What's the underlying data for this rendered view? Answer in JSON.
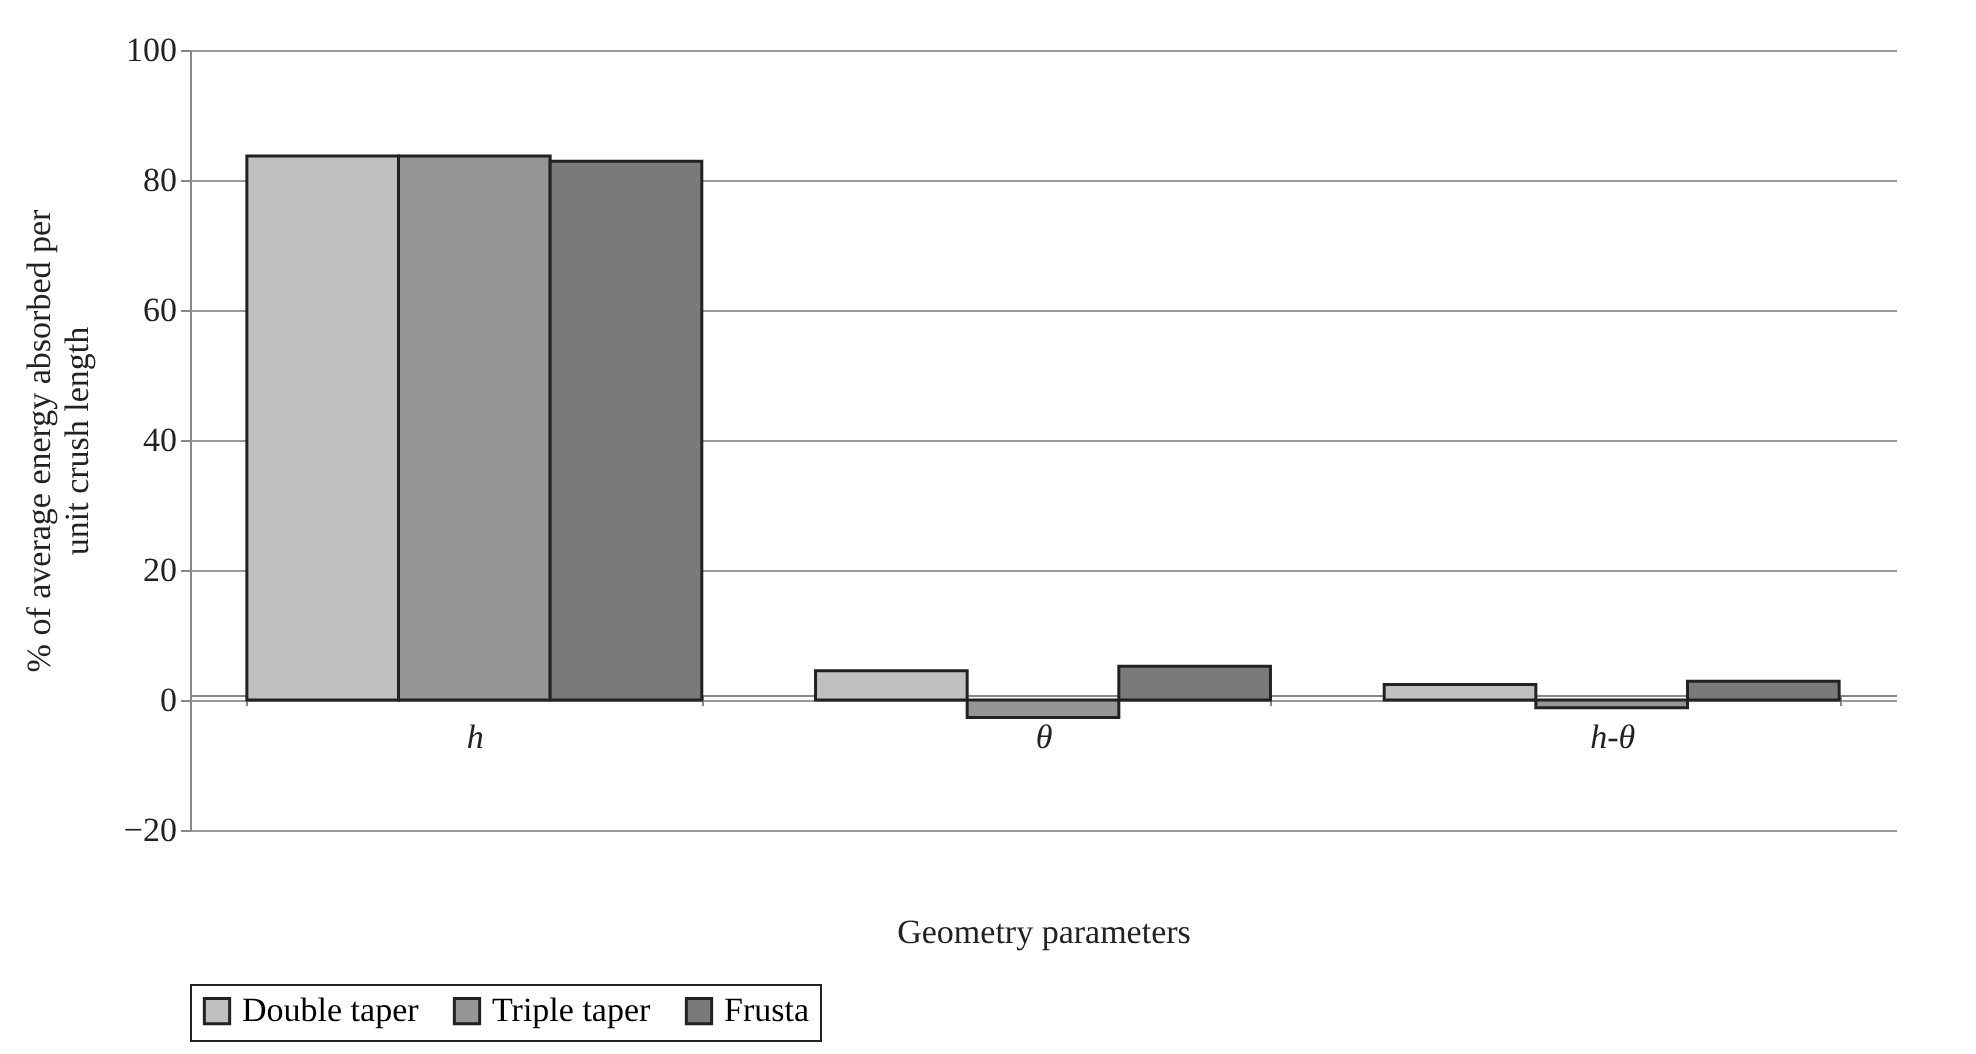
{
  "chart_data": {
    "type": "bar",
    "xlabel": "Geometry parameters",
    "ylabel": "% of average energy absorbed per unit crush length",
    "categories": [
      "h",
      "θ",
      "h-θ"
    ],
    "series": [
      {
        "name": "Double taper",
        "color": "#c0c0c0",
        "values": [
          83.7,
          4.5,
          2.4
        ]
      },
      {
        "name": "Triple taper",
        "color": "#969696",
        "values": [
          83.7,
          -2.7,
          -1.2
        ]
      },
      {
        "name": "Frusta",
        "color": "#7a7a7a",
        "values": [
          82.9,
          5.2,
          2.9
        ]
      }
    ],
    "ylim": [
      -20,
      100
    ],
    "yticks": [
      -20,
      0,
      20,
      40,
      60,
      80,
      100
    ],
    "grid": "y",
    "legend": "bottom"
  }
}
